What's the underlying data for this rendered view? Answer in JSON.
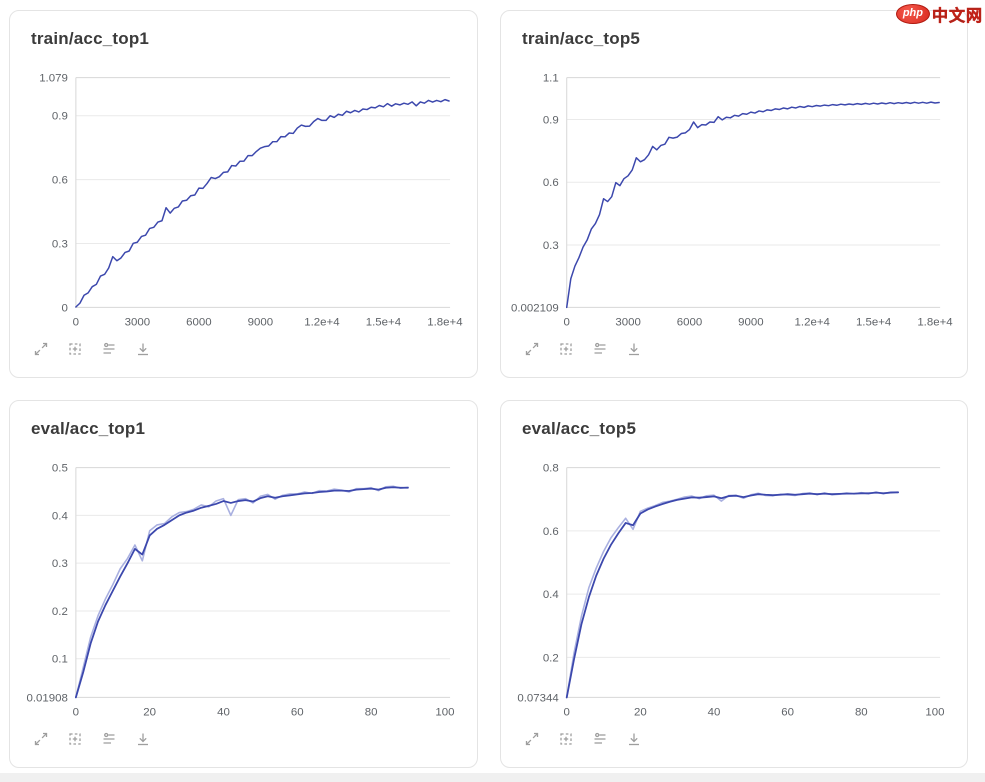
{
  "logo": {
    "badge": "php",
    "text": "中文网"
  },
  "toolbar": {
    "icons": [
      {
        "name": "fullscreen",
        "label": "Expand"
      },
      {
        "name": "fit-data",
        "label": "Fit domain to data"
      },
      {
        "name": "view-options",
        "label": "View options"
      },
      {
        "name": "download",
        "label": "Download"
      }
    ]
  },
  "colors": {
    "line_dark": "#3c48ad",
    "line_light": "#a9b0e0",
    "grid": "#eaeaea",
    "axis_border": "#d7d7d7",
    "tick_text": "#5f6368",
    "icon": "#9e9e9e"
  },
  "chart_data": [
    {
      "id": "train-acc-top1",
      "type": "line",
      "title": "train/acc_top1",
      "x_axis": {
        "min": 0,
        "max": 18250,
        "ticks": [
          {
            "v": 0,
            "label": "0"
          },
          {
            "v": 3000,
            "label": "3000"
          },
          {
            "v": 6000,
            "label": "6000"
          },
          {
            "v": 9000,
            "label": "9000"
          },
          {
            "v": 12000,
            "label": "1.2e+4"
          },
          {
            "v": 15000,
            "label": "1.5e+4"
          },
          {
            "v": 18000,
            "label": "1.8e+4"
          }
        ]
      },
      "y_axis": {
        "min": 0,
        "max": 1.079,
        "ticks": [
          {
            "v": 1.079,
            "label": "1.079"
          },
          {
            "v": 0.9,
            "label": "0.9"
          },
          {
            "v": 0.6,
            "label": "0.6"
          },
          {
            "v": 0.3,
            "label": "0.3"
          },
          {
            "v": 0,
            "label": "0"
          }
        ]
      },
      "series": [
        {
          "name": "value",
          "color": "#3c48ad",
          "width": 1.5,
          "x_start": 0,
          "x_step": 200,
          "y": [
            0.002,
            0.02,
            0.057,
            0.068,
            0.097,
            0.108,
            0.147,
            0.155,
            0.185,
            0.238,
            0.219,
            0.232,
            0.258,
            0.265,
            0.301,
            0.306,
            0.333,
            0.339,
            0.371,
            0.376,
            0.401,
            0.407,
            0.468,
            0.443,
            0.465,
            0.472,
            0.5,
            0.503,
            0.524,
            0.528,
            0.56,
            0.559,
            0.582,
            0.61,
            0.605,
            0.614,
            0.634,
            0.636,
            0.666,
            0.664,
            0.686,
            0.687,
            0.713,
            0.713,
            0.732,
            0.748,
            0.755,
            0.758,
            0.778,
            0.778,
            0.802,
            0.801,
            0.819,
            0.817,
            0.842,
            0.856,
            0.85,
            0.851,
            0.873,
            0.887,
            0.878,
            0.878,
            0.9,
            0.892,
            0.907,
            0.902,
            0.921,
            0.914,
            0.925,
            0.918,
            0.932,
            0.929,
            0.94,
            0.937,
            0.948,
            0.942,
            0.957,
            0.945,
            0.956,
            0.951,
            0.959,
            0.954,
            0.965,
            0.947,
            0.965,
            0.959,
            0.972,
            0.964,
            0.972,
            0.966,
            0.976,
            0.969
          ]
        }
      ]
    },
    {
      "id": "train-acc-top5",
      "type": "line",
      "title": "train/acc_top5",
      "x_axis": {
        "min": 0,
        "max": 18250,
        "ticks": [
          {
            "v": 0,
            "label": "0"
          },
          {
            "v": 3000,
            "label": "3000"
          },
          {
            "v": 6000,
            "label": "6000"
          },
          {
            "v": 9000,
            "label": "9000"
          },
          {
            "v": 12000,
            "label": "1.2e+4"
          },
          {
            "v": 15000,
            "label": "1.5e+4"
          },
          {
            "v": 18000,
            "label": "1.8e+4"
          }
        ]
      },
      "y_axis": {
        "min": 0.002109,
        "max": 1.1,
        "ticks": [
          {
            "v": 1.1,
            "label": "1.1"
          },
          {
            "v": 0.9,
            "label": "0.9"
          },
          {
            "v": 0.6,
            "label": "0.6"
          },
          {
            "v": 0.3,
            "label": "0.3"
          },
          {
            "v": 0.002109,
            "label": "0.002109"
          }
        ]
      },
      "series": [
        {
          "name": "value",
          "color": "#3c48ad",
          "width": 1.5,
          "x_start": 0,
          "x_step": 200,
          "y": [
            0.002,
            0.139,
            0.199,
            0.24,
            0.29,
            0.324,
            0.376,
            0.403,
            0.445,
            0.521,
            0.508,
            0.531,
            0.598,
            0.584,
            0.617,
            0.631,
            0.659,
            0.717,
            0.698,
            0.708,
            0.731,
            0.771,
            0.755,
            0.776,
            0.782,
            0.815,
            0.811,
            0.816,
            0.833,
            0.836,
            0.852,
            0.888,
            0.861,
            0.875,
            0.874,
            0.888,
            0.886,
            0.913,
            0.898,
            0.911,
            0.908,
            0.92,
            0.916,
            0.928,
            0.925,
            0.935,
            0.931,
            0.941,
            0.937,
            0.946,
            0.943,
            0.951,
            0.948,
            0.955,
            0.951,
            0.959,
            0.955,
            0.962,
            0.958,
            0.965,
            0.961,
            0.967,
            0.964,
            0.969,
            0.966,
            0.971,
            0.968,
            0.973,
            0.97,
            0.974,
            0.971,
            0.976,
            0.972,
            0.977,
            0.973,
            0.978,
            0.974,
            0.979,
            0.975,
            0.98,
            0.976,
            0.98,
            0.977,
            0.981,
            0.977,
            0.982,
            0.978,
            0.982,
            0.978,
            0.983,
            0.979,
            0.981
          ]
        }
      ]
    },
    {
      "id": "eval-acc-top1",
      "type": "line",
      "title": "eval/acc_top1",
      "x_axis": {
        "min": 0,
        "max": 101.4,
        "ticks": [
          {
            "v": 0,
            "label": "0"
          },
          {
            "v": 20,
            "label": "20"
          },
          {
            "v": 40,
            "label": "40"
          },
          {
            "v": 60,
            "label": "60"
          },
          {
            "v": 80,
            "label": "80"
          },
          {
            "v": 100,
            "label": "100"
          }
        ]
      },
      "y_axis": {
        "min": 0.01908,
        "max": 0.5,
        "ticks": [
          {
            "v": 0.5,
            "label": "0.5"
          },
          {
            "v": 0.4,
            "label": "0.4"
          },
          {
            "v": 0.3,
            "label": "0.3"
          },
          {
            "v": 0.2,
            "label": "0.2"
          },
          {
            "v": 0.1,
            "label": "0.1"
          },
          {
            "v": 0.01908,
            "label": "0.01908"
          }
        ]
      },
      "series": [
        {
          "name": "raw",
          "color": "#a9b0e0",
          "width": 1.6,
          "x_start": 0,
          "x_step": 2,
          "y": [
            0.019,
            0.082,
            0.145,
            0.19,
            0.225,
            0.255,
            0.288,
            0.31,
            0.338,
            0.305,
            0.368,
            0.38,
            0.383,
            0.397,
            0.406,
            0.408,
            0.413,
            0.422,
            0.418,
            0.43,
            0.435,
            0.4,
            0.433,
            0.435,
            0.426,
            0.44,
            0.444,
            0.434,
            0.442,
            0.445,
            0.445,
            0.449,
            0.446,
            0.452,
            0.451,
            0.455,
            0.453,
            0.449,
            0.456,
            0.456,
            0.458,
            0.452,
            0.46,
            0.461,
            0.457,
            0.459
          ]
        },
        {
          "name": "smoothed",
          "color": "#3c48ad",
          "width": 1.8,
          "x_start": 0,
          "x_step": 2,
          "y": [
            0.019,
            0.072,
            0.132,
            0.178,
            0.212,
            0.242,
            0.272,
            0.3,
            0.33,
            0.318,
            0.358,
            0.372,
            0.38,
            0.39,
            0.4,
            0.406,
            0.41,
            0.416,
            0.42,
            0.424,
            0.43,
            0.426,
            0.43,
            0.432,
            0.429,
            0.436,
            0.44,
            0.437,
            0.44,
            0.442,
            0.444,
            0.446,
            0.447,
            0.449,
            0.45,
            0.452,
            0.452,
            0.451,
            0.454,
            0.455,
            0.456,
            0.454,
            0.458,
            0.459,
            0.458,
            0.458
          ]
        }
      ]
    },
    {
      "id": "eval-acc-top5",
      "type": "line",
      "title": "eval/acc_top5",
      "x_axis": {
        "min": 0,
        "max": 101.4,
        "ticks": [
          {
            "v": 0,
            "label": "0"
          },
          {
            "v": 20,
            "label": "20"
          },
          {
            "v": 40,
            "label": "40"
          },
          {
            "v": 60,
            "label": "60"
          },
          {
            "v": 80,
            "label": "80"
          },
          {
            "v": 100,
            "label": "100"
          }
        ]
      },
      "y_axis": {
        "min": 0.07344,
        "max": 0.8,
        "ticks": [
          {
            "v": 0.8,
            "label": "0.8"
          },
          {
            "v": 0.6,
            "label": "0.6"
          },
          {
            "v": 0.4,
            "label": "0.4"
          },
          {
            "v": 0.2,
            "label": "0.2"
          },
          {
            "v": 0.07344,
            "label": "0.07344"
          }
        ]
      },
      "series": [
        {
          "name": "raw",
          "color": "#a9b0e0",
          "width": 1.6,
          "x_start": 0,
          "x_step": 2,
          "y": [
            0.073,
            0.215,
            0.33,
            0.42,
            0.482,
            0.535,
            0.578,
            0.61,
            0.64,
            0.605,
            0.662,
            0.672,
            0.68,
            0.69,
            0.694,
            0.7,
            0.707,
            0.71,
            0.702,
            0.711,
            0.713,
            0.694,
            0.712,
            0.713,
            0.703,
            0.714,
            0.719,
            0.712,
            0.711,
            0.716,
            0.714,
            0.712,
            0.718,
            0.72,
            0.714,
            0.72,
            0.714,
            0.716,
            0.72,
            0.717,
            0.721,
            0.717,
            0.723,
            0.717,
            0.723,
            0.722
          ]
        },
        {
          "name": "smoothed",
          "color": "#3c48ad",
          "width": 1.8,
          "x_start": 0,
          "x_step": 2,
          "y": [
            0.073,
            0.195,
            0.305,
            0.39,
            0.458,
            0.512,
            0.556,
            0.592,
            0.625,
            0.618,
            0.655,
            0.668,
            0.677,
            0.685,
            0.692,
            0.698,
            0.702,
            0.706,
            0.705,
            0.707,
            0.709,
            0.703,
            0.71,
            0.711,
            0.707,
            0.712,
            0.716,
            0.714,
            0.713,
            0.714,
            0.716,
            0.714,
            0.716,
            0.718,
            0.716,
            0.718,
            0.716,
            0.717,
            0.718,
            0.718,
            0.719,
            0.719,
            0.721,
            0.719,
            0.721,
            0.722
          ]
        }
      ]
    }
  ]
}
